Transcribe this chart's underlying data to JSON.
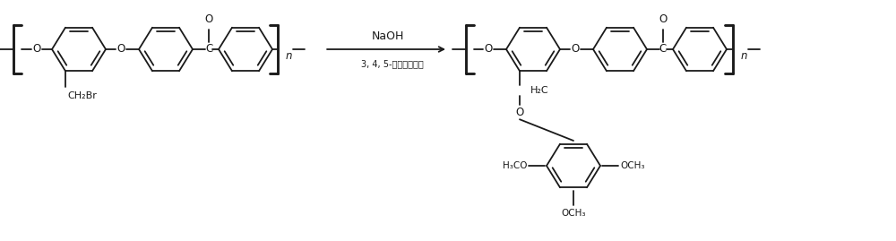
{
  "fig_width": 10.0,
  "fig_height": 2.69,
  "dpi": 100,
  "bg_color": "#ffffff",
  "line_color": "#1a1a1a",
  "line_width": 1.3,
  "font_size": 8.5,
  "naoh_text": "NaOH",
  "reagent_text": "3, 4, 5-三甲氧基苯酚",
  "ch2br_text": "CH₂Br",
  "h2c_text": "H₂C",
  "h3co_text": "H₃CO",
  "och3_text": "OCH₃",
  "n_text": "n",
  "o_text": "O",
  "c_text": "C"
}
